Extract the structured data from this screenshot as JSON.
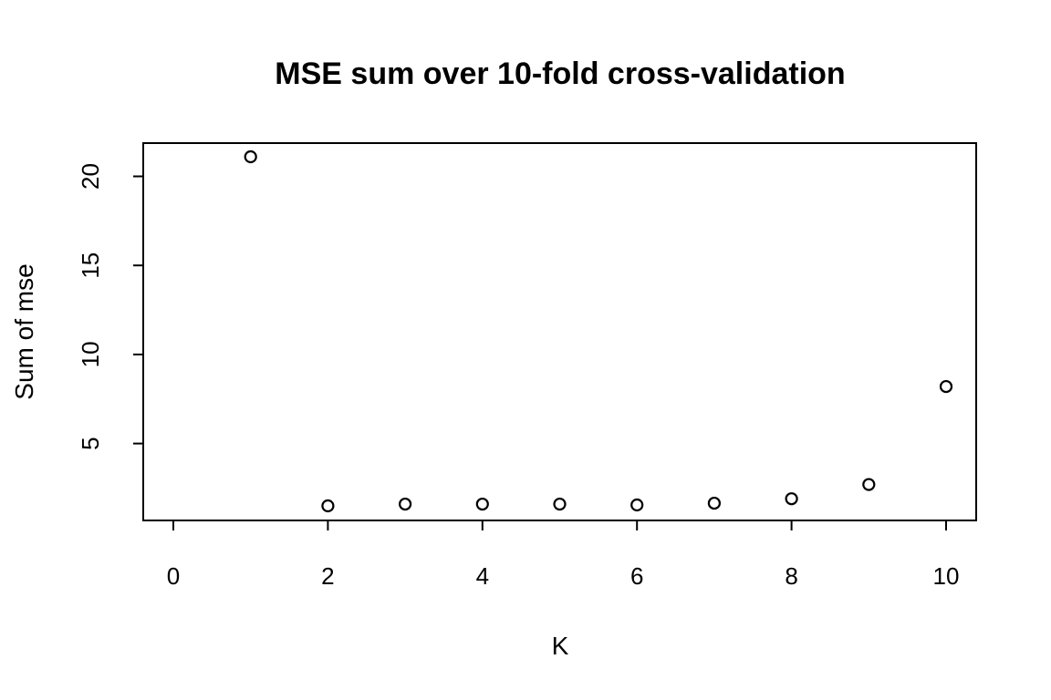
{
  "chart_data": {
    "type": "scatter",
    "title": "MSE sum over 10-fold cross-validation",
    "xlabel": "K",
    "ylabel": "Sum of mse",
    "x": [
      1,
      2,
      3,
      4,
      5,
      6,
      7,
      8,
      9,
      10
    ],
    "y": [
      21.1,
      1.5,
      1.6,
      1.6,
      1.6,
      1.55,
      1.65,
      1.9,
      2.7,
      8.2
    ],
    "xlim": [
      0,
      10
    ],
    "ylim": [
      1.5,
      21.1
    ],
    "xticks": [
      0,
      2,
      4,
      6,
      8,
      10
    ],
    "yticks": [
      5,
      10,
      15,
      20
    ],
    "grid": false,
    "marker": "open-circle"
  }
}
